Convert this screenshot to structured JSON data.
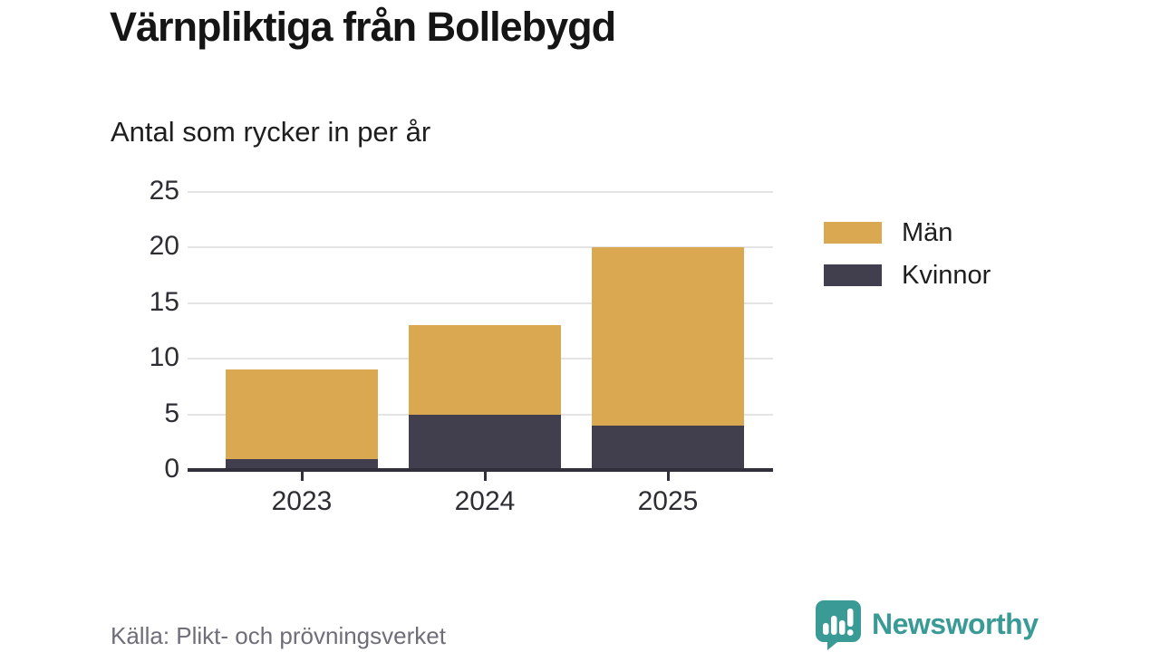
{
  "header": {
    "title": "Värnpliktiga från Bollebygd",
    "subtitle": "Antal som rycker in per år"
  },
  "chart_data": {
    "type": "bar",
    "stacked": true,
    "title": "Värnpliktiga från Bollebygd",
    "subtitle": "Antal som rycker in per år",
    "categories": [
      "2023",
      "2024",
      "2025"
    ],
    "series": [
      {
        "name": "Män",
        "color": "#d9a850",
        "values": [
          8,
          8,
          16
        ]
      },
      {
        "name": "Kvinnor",
        "color": "#413e4d",
        "values": [
          1,
          5,
          4
        ]
      }
    ],
    "stack_order_bottom_to_top": [
      "Kvinnor",
      "Män"
    ],
    "totals": [
      9,
      13,
      20
    ],
    "xlabel": "",
    "ylabel": "",
    "ylim": [
      0,
      25
    ],
    "yticks": [
      0,
      5,
      10,
      15,
      20,
      25
    ],
    "grid": true,
    "legend_position": "right",
    "colors": {
      "grid": "#e4e4e4",
      "axis": "#322f3d",
      "tick_text": "#2d2d34"
    }
  },
  "legend": {
    "items": [
      {
        "label": "Män",
        "color": "#d9a850"
      },
      {
        "label": "Kvinnor",
        "color": "#413e4d"
      }
    ]
  },
  "footer": {
    "source": "Källa: Plikt- och prövningsverket",
    "brand": "Newsworthy",
    "brand_color": "#3a9b96"
  }
}
